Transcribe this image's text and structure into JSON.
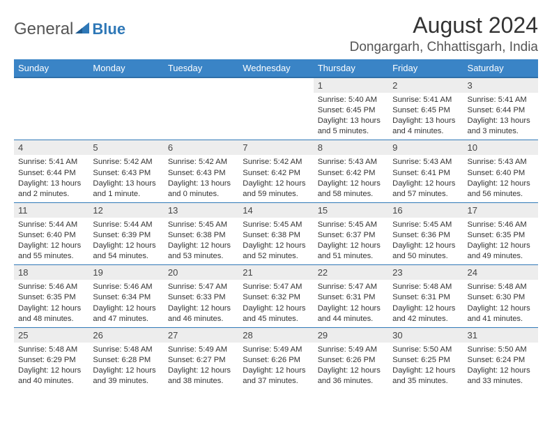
{
  "brand": {
    "name_a": "General",
    "name_b": "Blue"
  },
  "title": "August 2024",
  "location": "Dongargarh, Chhattisgarh, India",
  "colors": {
    "header_bg": "#3a84c6",
    "header_border": "#2f6fa8",
    "row_border": "#2f78b7",
    "daynum_bg": "#ededed",
    "text": "#333333"
  },
  "weekday_labels": [
    "Sunday",
    "Monday",
    "Tuesday",
    "Wednesday",
    "Thursday",
    "Friday",
    "Saturday"
  ],
  "weeks": [
    [
      null,
      null,
      null,
      null,
      {
        "n": "1",
        "sunrise": "5:40 AM",
        "sunset": "6:45 PM",
        "daylight": "13 hours and 5 minutes."
      },
      {
        "n": "2",
        "sunrise": "5:41 AM",
        "sunset": "6:45 PM",
        "daylight": "13 hours and 4 minutes."
      },
      {
        "n": "3",
        "sunrise": "5:41 AM",
        "sunset": "6:44 PM",
        "daylight": "13 hours and 3 minutes."
      }
    ],
    [
      {
        "n": "4",
        "sunrise": "5:41 AM",
        "sunset": "6:44 PM",
        "daylight": "13 hours and 2 minutes."
      },
      {
        "n": "5",
        "sunrise": "5:42 AM",
        "sunset": "6:43 PM",
        "daylight": "13 hours and 1 minute."
      },
      {
        "n": "6",
        "sunrise": "5:42 AM",
        "sunset": "6:43 PM",
        "daylight": "13 hours and 0 minutes."
      },
      {
        "n": "7",
        "sunrise": "5:42 AM",
        "sunset": "6:42 PM",
        "daylight": "12 hours and 59 minutes."
      },
      {
        "n": "8",
        "sunrise": "5:43 AM",
        "sunset": "6:42 PM",
        "daylight": "12 hours and 58 minutes."
      },
      {
        "n": "9",
        "sunrise": "5:43 AM",
        "sunset": "6:41 PM",
        "daylight": "12 hours and 57 minutes."
      },
      {
        "n": "10",
        "sunrise": "5:43 AM",
        "sunset": "6:40 PM",
        "daylight": "12 hours and 56 minutes."
      }
    ],
    [
      {
        "n": "11",
        "sunrise": "5:44 AM",
        "sunset": "6:40 PM",
        "daylight": "12 hours and 55 minutes."
      },
      {
        "n": "12",
        "sunrise": "5:44 AM",
        "sunset": "6:39 PM",
        "daylight": "12 hours and 54 minutes."
      },
      {
        "n": "13",
        "sunrise": "5:45 AM",
        "sunset": "6:38 PM",
        "daylight": "12 hours and 53 minutes."
      },
      {
        "n": "14",
        "sunrise": "5:45 AM",
        "sunset": "6:38 PM",
        "daylight": "12 hours and 52 minutes."
      },
      {
        "n": "15",
        "sunrise": "5:45 AM",
        "sunset": "6:37 PM",
        "daylight": "12 hours and 51 minutes."
      },
      {
        "n": "16",
        "sunrise": "5:45 AM",
        "sunset": "6:36 PM",
        "daylight": "12 hours and 50 minutes."
      },
      {
        "n": "17",
        "sunrise": "5:46 AM",
        "sunset": "6:35 PM",
        "daylight": "12 hours and 49 minutes."
      }
    ],
    [
      {
        "n": "18",
        "sunrise": "5:46 AM",
        "sunset": "6:35 PM",
        "daylight": "12 hours and 48 minutes."
      },
      {
        "n": "19",
        "sunrise": "5:46 AM",
        "sunset": "6:34 PM",
        "daylight": "12 hours and 47 minutes."
      },
      {
        "n": "20",
        "sunrise": "5:47 AM",
        "sunset": "6:33 PM",
        "daylight": "12 hours and 46 minutes."
      },
      {
        "n": "21",
        "sunrise": "5:47 AM",
        "sunset": "6:32 PM",
        "daylight": "12 hours and 45 minutes."
      },
      {
        "n": "22",
        "sunrise": "5:47 AM",
        "sunset": "6:31 PM",
        "daylight": "12 hours and 44 minutes."
      },
      {
        "n": "23",
        "sunrise": "5:48 AM",
        "sunset": "6:31 PM",
        "daylight": "12 hours and 42 minutes."
      },
      {
        "n": "24",
        "sunrise": "5:48 AM",
        "sunset": "6:30 PM",
        "daylight": "12 hours and 41 minutes."
      }
    ],
    [
      {
        "n": "25",
        "sunrise": "5:48 AM",
        "sunset": "6:29 PM",
        "daylight": "12 hours and 40 minutes."
      },
      {
        "n": "26",
        "sunrise": "5:48 AM",
        "sunset": "6:28 PM",
        "daylight": "12 hours and 39 minutes."
      },
      {
        "n": "27",
        "sunrise": "5:49 AM",
        "sunset": "6:27 PM",
        "daylight": "12 hours and 38 minutes."
      },
      {
        "n": "28",
        "sunrise": "5:49 AM",
        "sunset": "6:26 PM",
        "daylight": "12 hours and 37 minutes."
      },
      {
        "n": "29",
        "sunrise": "5:49 AM",
        "sunset": "6:26 PM",
        "daylight": "12 hours and 36 minutes."
      },
      {
        "n": "30",
        "sunrise": "5:50 AM",
        "sunset": "6:25 PM",
        "daylight": "12 hours and 35 minutes."
      },
      {
        "n": "31",
        "sunrise": "5:50 AM",
        "sunset": "6:24 PM",
        "daylight": "12 hours and 33 minutes."
      }
    ]
  ],
  "labels": {
    "sunrise": "Sunrise:",
    "sunset": "Sunset:",
    "daylight": "Daylight:"
  }
}
